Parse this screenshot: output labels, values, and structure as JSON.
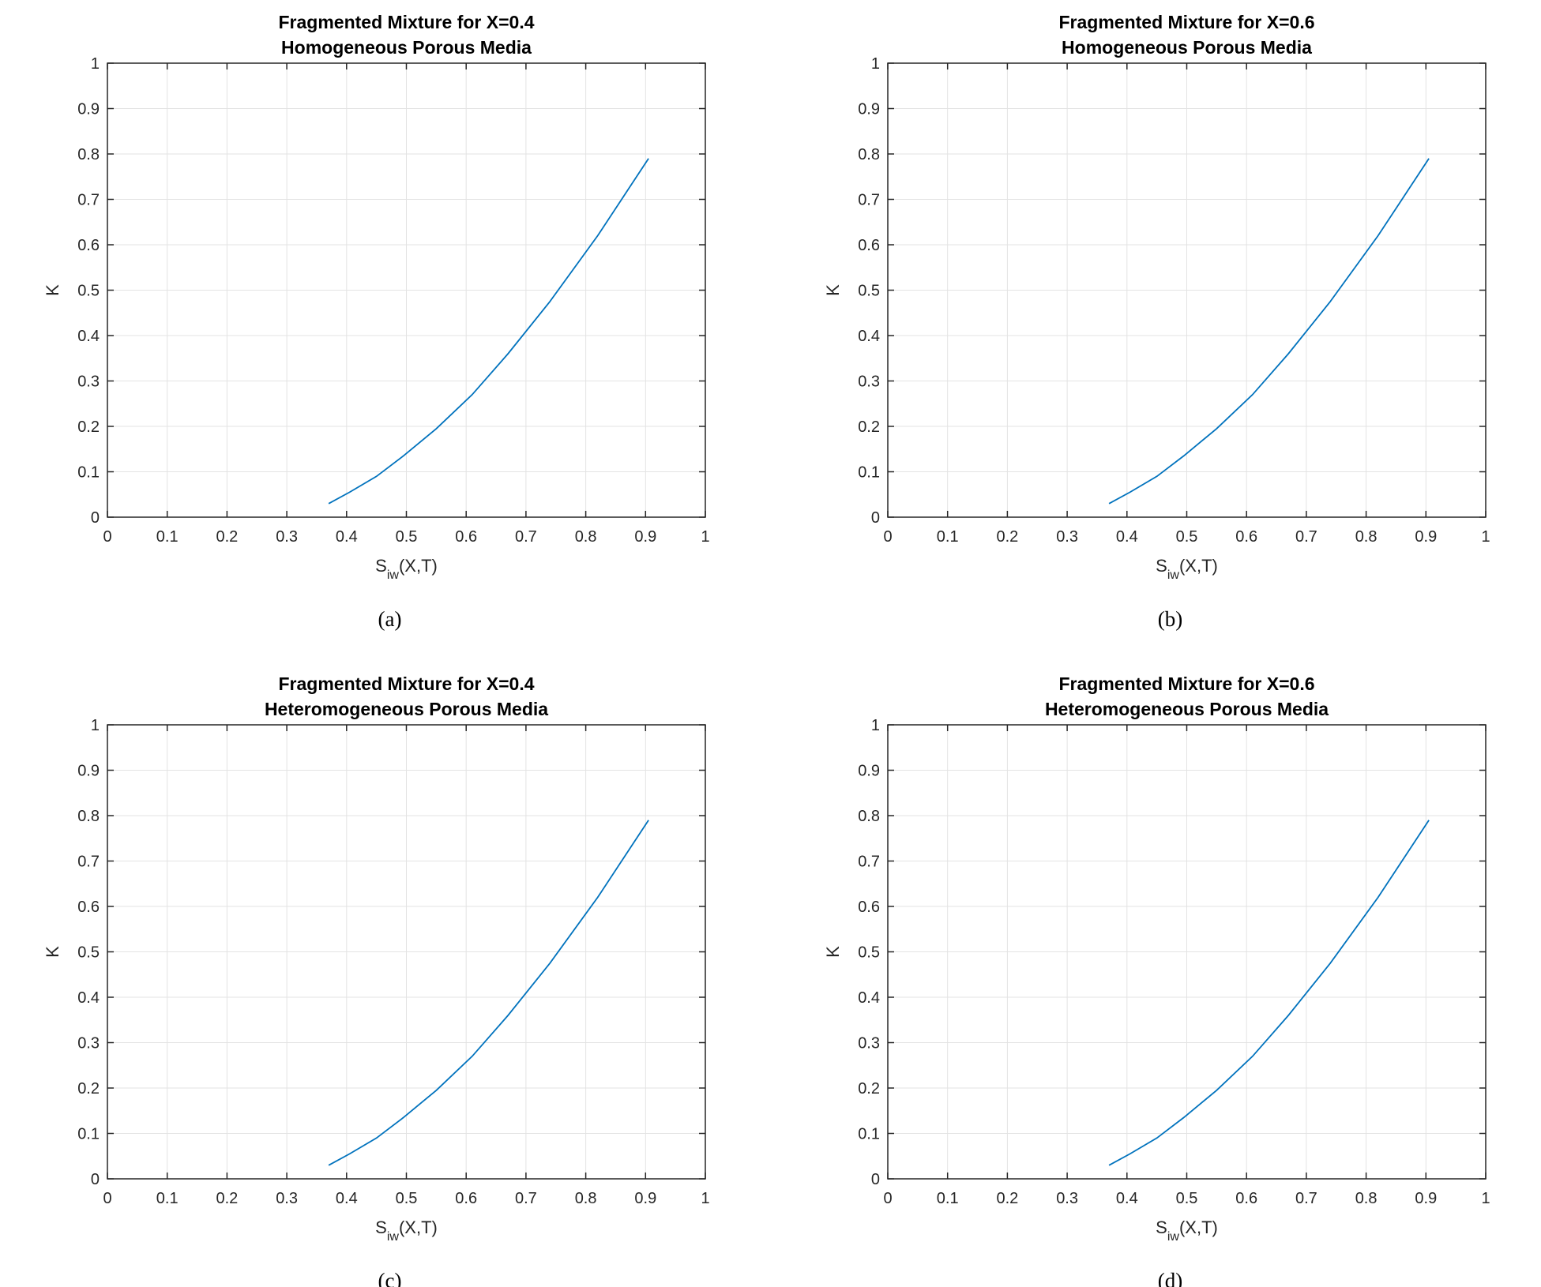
{
  "chart_data": [
    {
      "type": "line",
      "panel": "a",
      "title": [
        "Fragmented Mixture for X=0.4",
        "Homogeneous Porous Media"
      ],
      "xlabel": "S",
      "xlabel_sub": "iw",
      "xlabel_rest": "(X,T)",
      "ylabel": "K",
      "caption": "(a)",
      "xlim": [
        0,
        1
      ],
      "ylim": [
        0,
        1
      ],
      "xticks": [
        "0",
        "0.1",
        "0.2",
        "0.3",
        "0.4",
        "0.5",
        "0.6",
        "0.7",
        "0.8",
        "0.9",
        "1"
      ],
      "yticks": [
        "0",
        "0.1",
        "0.2",
        "0.3",
        "0.4",
        "0.5",
        "0.6",
        "0.7",
        "0.8",
        "0.9",
        "1"
      ],
      "grid": true,
      "line_color": "#0072BD",
      "x": [
        0.37,
        0.405,
        0.45,
        0.495,
        0.55,
        0.61,
        0.67,
        0.74,
        0.82,
        0.865,
        0.905
      ],
      "y": [
        0.03,
        0.055,
        0.09,
        0.135,
        0.195,
        0.27,
        0.36,
        0.475,
        0.62,
        0.71,
        0.79
      ]
    },
    {
      "type": "line",
      "panel": "b",
      "title": [
        "Fragmented Mixture for X=0.6",
        "Homogeneous Porous Media"
      ],
      "xlabel": "S",
      "xlabel_sub": "iw",
      "xlabel_rest": "(X,T)",
      "ylabel": "K",
      "caption": "(b)",
      "xlim": [
        0,
        1
      ],
      "ylim": [
        0,
        1
      ],
      "xticks": [
        "0",
        "0.1",
        "0.2",
        "0.3",
        "0.4",
        "0.5",
        "0.6",
        "0.7",
        "0.8",
        "0.9",
        "1"
      ],
      "yticks": [
        "0",
        "0.1",
        "0.2",
        "0.3",
        "0.4",
        "0.5",
        "0.6",
        "0.7",
        "0.8",
        "0.9",
        "1"
      ],
      "grid": true,
      "line_color": "#0072BD",
      "x": [
        0.37,
        0.405,
        0.45,
        0.495,
        0.55,
        0.61,
        0.67,
        0.74,
        0.82,
        0.865,
        0.905
      ],
      "y": [
        0.03,
        0.055,
        0.09,
        0.135,
        0.195,
        0.27,
        0.36,
        0.475,
        0.62,
        0.71,
        0.79
      ]
    },
    {
      "type": "line",
      "panel": "c",
      "title": [
        "Fragmented Mixture for X=0.4",
        "Heteromogeneous Porous Media"
      ],
      "xlabel": "S",
      "xlabel_sub": "iw",
      "xlabel_rest": "(X,T)",
      "ylabel": "K",
      "caption": "(c)",
      "xlim": [
        0,
        1
      ],
      "ylim": [
        0,
        1
      ],
      "xticks": [
        "0",
        "0.1",
        "0.2",
        "0.3",
        "0.4",
        "0.5",
        "0.6",
        "0.7",
        "0.8",
        "0.9",
        "1"
      ],
      "yticks": [
        "0",
        "0.1",
        "0.2",
        "0.3",
        "0.4",
        "0.5",
        "0.6",
        "0.7",
        "0.8",
        "0.9",
        "1"
      ],
      "grid": true,
      "line_color": "#0072BD",
      "x": [
        0.37,
        0.405,
        0.45,
        0.495,
        0.55,
        0.61,
        0.67,
        0.74,
        0.82,
        0.865,
        0.905
      ],
      "y": [
        0.03,
        0.055,
        0.09,
        0.135,
        0.195,
        0.27,
        0.36,
        0.475,
        0.62,
        0.71,
        0.79
      ]
    },
    {
      "type": "line",
      "panel": "d",
      "title": [
        "Fragmented Mixture for X=0.6",
        "Heteromogeneous Porous Media"
      ],
      "xlabel": "S",
      "xlabel_sub": "iw",
      "xlabel_rest": "(X,T)",
      "ylabel": "K",
      "caption": "(d)",
      "xlim": [
        0,
        1
      ],
      "ylim": [
        0,
        1
      ],
      "xticks": [
        "0",
        "0.1",
        "0.2",
        "0.3",
        "0.4",
        "0.5",
        "0.6",
        "0.7",
        "0.8",
        "0.9",
        "1"
      ],
      "yticks": [
        "0",
        "0.1",
        "0.2",
        "0.3",
        "0.4",
        "0.5",
        "0.6",
        "0.7",
        "0.8",
        "0.9",
        "1"
      ],
      "grid": true,
      "line_color": "#0072BD",
      "x": [
        0.37,
        0.405,
        0.45,
        0.495,
        0.55,
        0.61,
        0.67,
        0.74,
        0.82,
        0.865,
        0.905
      ],
      "y": [
        0.03,
        0.055,
        0.09,
        0.135,
        0.195,
        0.27,
        0.36,
        0.475,
        0.62,
        0.71,
        0.79
      ]
    }
  ]
}
